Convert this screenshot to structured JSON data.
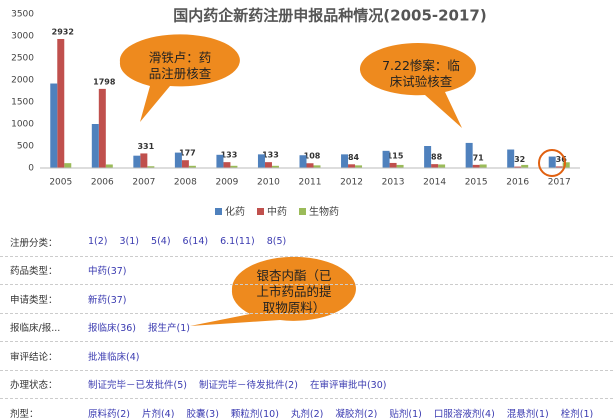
{
  "chart_data": {
    "type": "bar",
    "title": "国内药企新药注册申报品种情况(2005-2017)",
    "categories": [
      "2005",
      "2006",
      "2007",
      "2008",
      "2009",
      "2010",
      "2011",
      "2012",
      "2013",
      "2014",
      "2015",
      "2016",
      "2017"
    ],
    "series": [
      {
        "name": "化药",
        "color": "#4f81bd",
        "values": [
          1920,
          1000,
          280,
          350,
          300,
          310,
          290,
          310,
          390,
          500,
          570,
          420,
          260
        ]
      },
      {
        "name": "中药",
        "color": "#c0504d",
        "values": [
          2932,
          1798,
          331,
          177,
          133,
          133,
          108,
          84,
          115,
          88,
          71,
          32,
          36
        ]
      },
      {
        "name": "生物药",
        "color": "#9bbb59",
        "values": [
          110,
          80,
          40,
          50,
          50,
          50,
          60,
          60,
          70,
          80,
          80,
          70,
          130
        ]
      }
    ],
    "ylim": [
      0,
      3500
    ],
    "yticks": [
      0,
      500,
      1000,
      1500,
      2000,
      2500,
      3000,
      3500
    ],
    "data_labels_series": 1,
    "annotations": [
      "滑铁卢：药品注册核查",
      "7.22惨案：临床试验核查",
      "银杏内酯（已上市药品的提取物原料）"
    ]
  },
  "filters": [
    {
      "label": "注册分类：",
      "options": [
        "1(2)",
        "3(1)",
        "5(4)",
        "6(14)",
        "6.1(11)",
        "8(5)"
      ]
    },
    {
      "label": "药品类型：",
      "options": [
        "中药(37)"
      ]
    },
    {
      "label": "申请类型：",
      "options": [
        "新药(37)"
      ]
    },
    {
      "label": "报临床/报...",
      "options": [
        "报临床(36)",
        "报生产(1)"
      ]
    },
    {
      "label": "审评结论：",
      "options": [
        "批准临床(4)"
      ]
    },
    {
      "label": "办理状态：",
      "options": [
        "制证完毕－已发批件(5)",
        "制证完毕－待发批件(2)",
        "在审评审批中(30)"
      ]
    },
    {
      "label": "剂型：",
      "options": [
        "原料药(2)",
        "片剂(4)",
        "胶囊(3)",
        "颗粒剂(10)",
        "丸剂(2)",
        "凝胶剂(2)",
        "贴剂(1)",
        "口服溶液剂(4)",
        "混悬剂(1)",
        "栓剂(1)"
      ]
    }
  ]
}
